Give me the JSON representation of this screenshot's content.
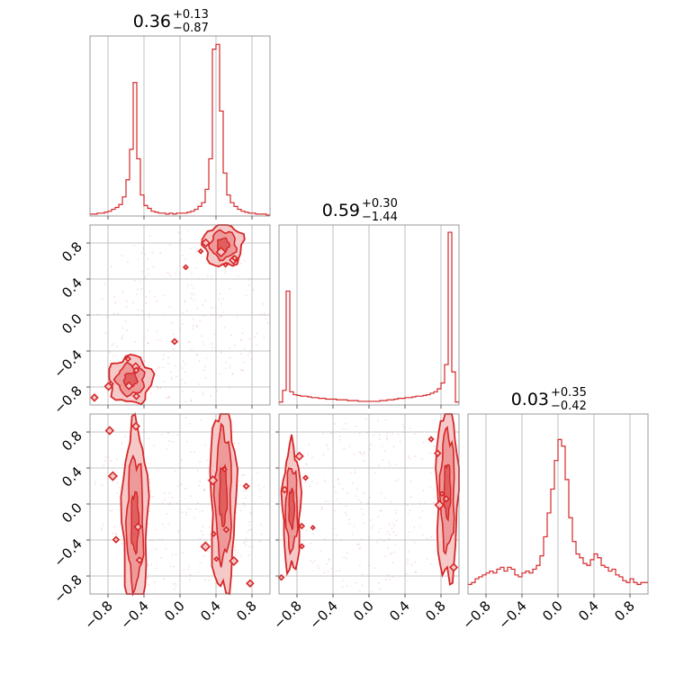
{
  "chart_data": [
    {
      "panel": "param-1-marginal",
      "type": "histogram",
      "title_value": "0.36",
      "title_plus": "+0.13",
      "title_minus": "−0.87",
      "xlim": [
        -1,
        1
      ],
      "x": [
        -1.0,
        -0.96,
        -0.92,
        -0.88,
        -0.84,
        -0.8,
        -0.76,
        -0.72,
        -0.68,
        -0.64,
        -0.6,
        -0.56,
        -0.52,
        -0.48,
        -0.44,
        -0.4,
        -0.36,
        -0.32,
        -0.28,
        -0.24,
        -0.2,
        -0.16,
        -0.12,
        -0.08,
        -0.04,
        0.0,
        0.04,
        0.08,
        0.12,
        0.16,
        0.2,
        0.24,
        0.28,
        0.32,
        0.36,
        0.4,
        0.44,
        0.48,
        0.52,
        0.56,
        0.6,
        0.64,
        0.68,
        0.72,
        0.76,
        0.8,
        0.84,
        0.88,
        0.92,
        0.96
      ],
      "values": [
        2,
        2,
        3,
        3,
        4,
        5,
        7,
        9,
        12,
        20,
        38,
        70,
        140,
        60,
        22,
        11,
        8,
        5,
        4,
        3,
        3,
        2,
        3,
        2,
        3,
        3,
        3,
        4,
        5,
        7,
        10,
        14,
        28,
        60,
        175,
        180,
        110,
        45,
        22,
        14,
        10,
        7,
        5,
        4,
        3,
        3,
        2,
        2,
        2,
        1
      ],
      "ymax": 185
    },
    {
      "panel": "param-2-marginal",
      "type": "histogram",
      "title_value": "0.59",
      "title_plus": "+0.30",
      "title_minus": "−1.44",
      "xlim": [
        -1,
        1
      ],
      "x": [
        -1.0,
        -0.96,
        -0.92,
        -0.88,
        -0.84,
        -0.8,
        -0.76,
        -0.72,
        -0.68,
        -0.64,
        -0.6,
        -0.56,
        -0.52,
        -0.48,
        -0.44,
        -0.4,
        -0.36,
        -0.32,
        -0.28,
        -0.24,
        -0.2,
        -0.16,
        -0.12,
        -0.08,
        -0.04,
        0.0,
        0.04,
        0.08,
        0.12,
        0.16,
        0.2,
        0.24,
        0.28,
        0.32,
        0.36,
        0.4,
        0.44,
        0.48,
        0.52,
        0.56,
        0.6,
        0.64,
        0.68,
        0.72,
        0.76,
        0.8,
        0.84,
        0.88,
        0.92,
        0.96
      ],
      "values": [
        4,
        20,
        155,
        18,
        14,
        13,
        12,
        12,
        11,
        10,
        10,
        9,
        9,
        8,
        8,
        8,
        7,
        7,
        7,
        6,
        6,
        6,
        5,
        5,
        5,
        5,
        5,
        5,
        6,
        6,
        7,
        7,
        8,
        9,
        9,
        10,
        10,
        11,
        12,
        12,
        13,
        14,
        16,
        18,
        22,
        30,
        55,
        235,
        45,
        4
      ],
      "ymax": 240
    },
    {
      "panel": "param-3-marginal",
      "type": "histogram",
      "title_value": "0.03",
      "title_plus": "+0.35",
      "title_minus": "−0.42",
      "xlim": [
        -1,
        1
      ],
      "x": [
        -1.0,
        -0.96,
        -0.92,
        -0.88,
        -0.84,
        -0.8,
        -0.76,
        -0.72,
        -0.68,
        -0.64,
        -0.6,
        -0.56,
        -0.52,
        -0.48,
        -0.44,
        -0.4,
        -0.36,
        -0.32,
        -0.28,
        -0.24,
        -0.2,
        -0.16,
        -0.12,
        -0.08,
        -0.04,
        0.0,
        0.04,
        0.08,
        0.12,
        0.16,
        0.2,
        0.24,
        0.28,
        0.32,
        0.36,
        0.4,
        0.44,
        0.48,
        0.52,
        0.56,
        0.6,
        0.64,
        0.68,
        0.72,
        0.76,
        0.8,
        0.84,
        0.88,
        0.92,
        0.96
      ],
      "values": [
        10,
        12,
        16,
        18,
        20,
        22,
        24,
        22,
        26,
        28,
        24,
        28,
        26,
        20,
        18,
        22,
        24,
        22,
        26,
        30,
        40,
        60,
        85,
        110,
        140,
        162,
        155,
        120,
        80,
        55,
        42,
        38,
        32,
        30,
        36,
        42,
        38,
        30,
        28,
        24,
        26,
        20,
        18,
        14,
        12,
        16,
        12,
        10,
        12,
        12
      ],
      "ymax": 185
    },
    {
      "panel": "param-1-vs-2",
      "type": "contour",
      "xlim": [
        -1,
        1
      ],
      "ylim": [
        -1,
        1
      ],
      "modes": [
        {
          "x": 0.48,
          "y": 0.78,
          "sx": 0.11,
          "sy": 0.12
        },
        {
          "x": -0.55,
          "y": -0.72,
          "sx": 0.12,
          "sy": 0.13
        }
      ]
    },
    {
      "panel": "param-1-vs-3",
      "type": "contour",
      "xlim": [
        -1,
        1
      ],
      "ylim": [
        -1,
        1
      ],
      "modes": [
        {
          "x": -0.5,
          "y": -0.2,
          "sx": 0.07,
          "sy": 0.55
        },
        {
          "x": 0.48,
          "y": 0.1,
          "sx": 0.07,
          "sy": 0.55
        }
      ]
    },
    {
      "panel": "param-2-vs-3",
      "type": "contour",
      "xlim": [
        -1,
        1
      ],
      "ylim": [
        -1,
        1
      ],
      "modes": [
        {
          "x": -0.86,
          "y": -0.05,
          "sx": 0.05,
          "sy": 0.35
        },
        {
          "x": 0.87,
          "y": 0.15,
          "sx": 0.06,
          "sy": 0.5
        }
      ]
    }
  ],
  "axes": {
    "tick_values": [
      -0.8,
      -0.4,
      0.0,
      0.4,
      0.8
    ],
    "tick_labels": [
      "−0.8",
      "−0.4",
      "0.0",
      "0.4",
      "0.8"
    ]
  },
  "colors": {
    "series": "#d62728",
    "fill_light": "#f6c9c9",
    "fill_mid": "#ee9a9a"
  }
}
